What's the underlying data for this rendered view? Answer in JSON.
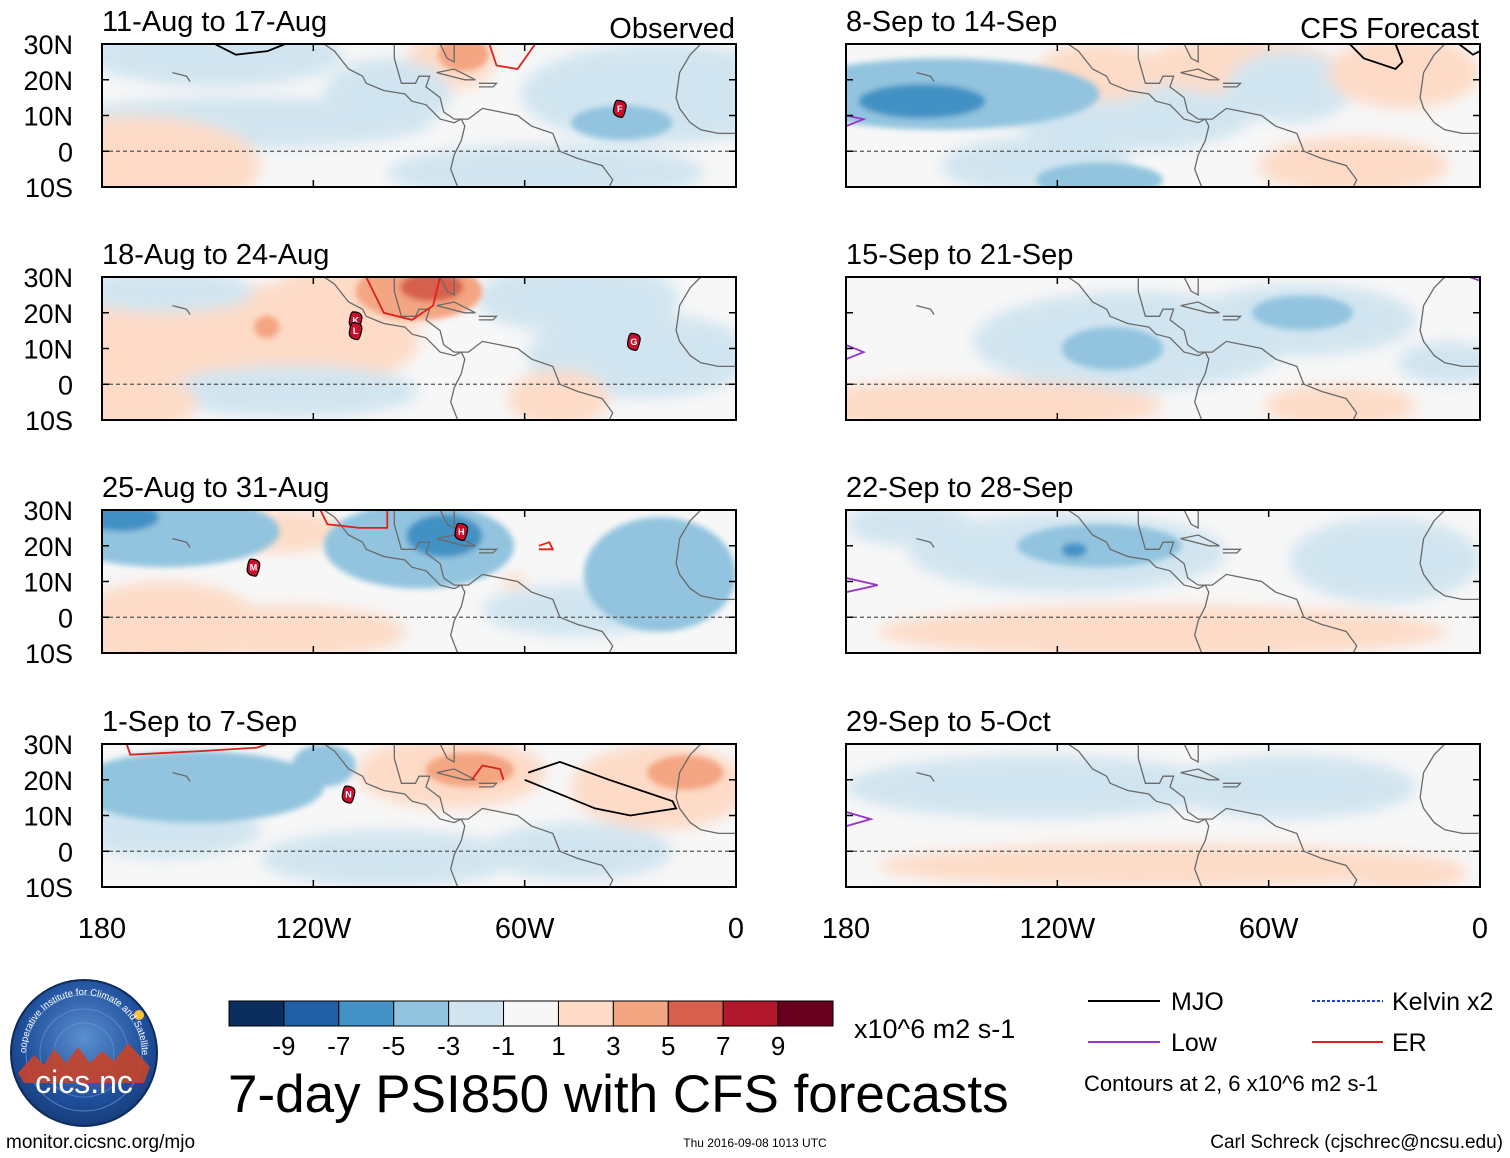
{
  "figure_title": "7-day PSI850 with CFS forecasts",
  "footer": {
    "url": "monitor.cicsnc.org/mjo",
    "timestamp": "Thu 2016-09-08 1013 UTC",
    "author": "Carl Schreck (cjschrec@ncsu.edu)"
  },
  "logo": {
    "text": "cics.nc",
    "ring_text": "Cooperative Institute for Climate and Satellites"
  },
  "colorbar": {
    "colors": [
      "#0b2d5e",
      "#1f5fa5",
      "#4391c5",
      "#92c4df",
      "#d1e5f0",
      "#f7f7f7",
      "#fddbc7",
      "#f4a582",
      "#d6604d",
      "#b2182b",
      "#67001f"
    ],
    "tick_labels": [
      "-9",
      "-7",
      "-5",
      "-3",
      "-1",
      "1",
      "3",
      "5",
      "7",
      "9"
    ],
    "units": "x10^6 m2 s-1"
  },
  "legend": {
    "items": [
      {
        "label": "MJO",
        "color": "#000000",
        "dashed": false
      },
      {
        "label": "Kelvin x2",
        "color": "#1f3fd0",
        "dashed": true
      },
      {
        "label": "Low",
        "color": "#9a32cd",
        "dashed": false
      },
      {
        "label": "ER",
        "color": "#e0201a",
        "dashed": false
      }
    ],
    "note": "Contours at 2, 6 x10^6 m2 s-1"
  },
  "chart_data": {
    "type": "heatmap",
    "variable": "PSI850 anomaly",
    "units": "x10^6 m2 s-1",
    "x_axis": {
      "range": [
        -180,
        0
      ],
      "ticks": [
        -180,
        -120,
        -60,
        0
      ],
      "tick_labels": [
        "180",
        "120W",
        "60W",
        "0"
      ]
    },
    "y_axis": {
      "range": [
        -10,
        30
      ],
      "ticks": [
        30,
        20,
        10,
        0,
        -10
      ],
      "tick_labels": [
        "30N",
        "20N",
        "10N",
        "0",
        "10S"
      ]
    },
    "columns": [
      {
        "header": "Observed",
        "panels": [
          {
            "title": "11-Aug to 17-Aug",
            "storms": [
              {
                "letter": "F",
                "lon": -33,
                "lat": 12
              }
            ]
          },
          {
            "title": "18-Aug to 24-Aug",
            "storms": [
              {
                "letter": "K",
                "lon": -108,
                "lat": 18
              },
              {
                "letter": "L",
                "lon": -108,
                "lat": 15
              },
              {
                "letter": "G",
                "lon": -29,
                "lat": 12
              }
            ]
          },
          {
            "title": "25-Aug to 31-Aug",
            "storms": [
              {
                "letter": "M",
                "lon": -137,
                "lat": 14
              },
              {
                "letter": "H",
                "lon": -78,
                "lat": 24
              }
            ]
          },
          {
            "title": "1-Sep to 7-Sep",
            "storms": [
              {
                "letter": "N",
                "lon": -110,
                "lat": 16
              }
            ]
          }
        ]
      },
      {
        "header": "CFS Forecast",
        "panels": [
          {
            "title": "8-Sep to 14-Sep",
            "storms": []
          },
          {
            "title": "15-Sep to 21-Sep",
            "storms": []
          },
          {
            "title": "22-Sep to 28-Sep",
            "storms": []
          },
          {
            "title": "29-Sep to 5-Oct",
            "storms": []
          }
        ]
      }
    ]
  }
}
